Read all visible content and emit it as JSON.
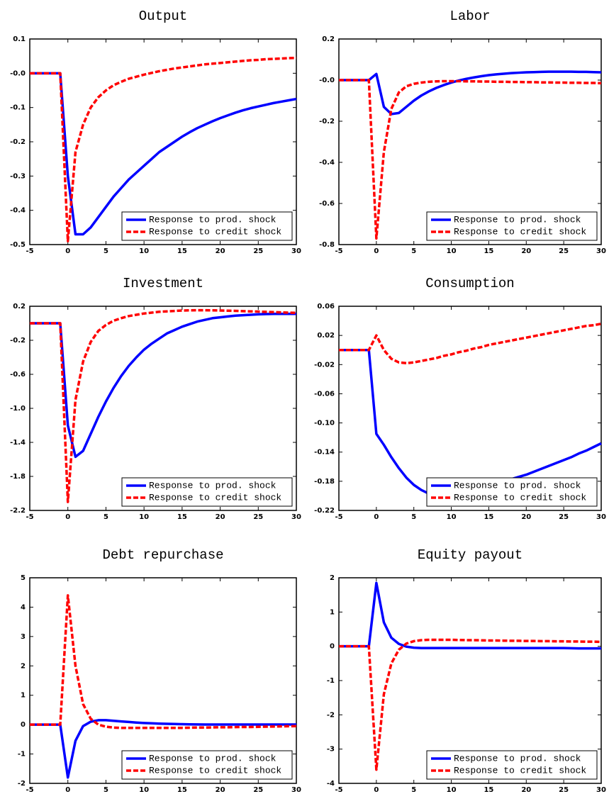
{
  "chart_data": [
    {
      "type": "line",
      "title": "Output",
      "x": [
        -5,
        -4,
        -3,
        -2,
        -1,
        0,
        1,
        2,
        3,
        4,
        5,
        6,
        7,
        8,
        9,
        10,
        11,
        12,
        13,
        14,
        15,
        16,
        17,
        18,
        19,
        20,
        21,
        22,
        23,
        24,
        25,
        26,
        27,
        28,
        29,
        30
      ],
      "series": [
        {
          "name": "Response to prod. shock",
          "color": "#0000ff",
          "linestyle": "solid",
          "values": [
            0,
            0,
            0,
            0,
            0,
            -0.3,
            -0.47,
            -0.47,
            -0.45,
            -0.42,
            -0.39,
            -0.36,
            -0.335,
            -0.31,
            -0.29,
            -0.27,
            -0.25,
            -0.23,
            -0.215,
            -0.2,
            -0.185,
            -0.172,
            -0.16,
            -0.15,
            -0.14,
            -0.131,
            -0.123,
            -0.115,
            -0.108,
            -0.102,
            -0.097,
            -0.092,
            -0.087,
            -0.083,
            -0.079,
            -0.075
          ]
        },
        {
          "name": "Response to credit shock",
          "color": "#ff0000",
          "linestyle": "dashed",
          "values": [
            0,
            0,
            0,
            0,
            0,
            -0.49,
            -0.23,
            -0.15,
            -0.1,
            -0.07,
            -0.05,
            -0.035,
            -0.025,
            -0.016,
            -0.01,
            -0.004,
            0.001,
            0.006,
            0.01,
            0.014,
            0.017,
            0.02,
            0.023,
            0.026,
            0.028,
            0.03,
            0.032,
            0.034,
            0.036,
            0.038,
            0.039,
            0.041,
            0.042,
            0.043,
            0.044,
            0.045
          ]
        }
      ],
      "xlim": [
        -5,
        30
      ],
      "xticks": [
        -5,
        0,
        5,
        10,
        15,
        20,
        25,
        30
      ],
      "ylim": [
        -0.5,
        0.1
      ],
      "yticks": [
        0.1,
        {
          "value": 0,
          "label": "-0.0"
        },
        -0.1,
        -0.2,
        -0.3,
        -0.4,
        -0.5
      ],
      "legend": "lower right"
    },
    {
      "type": "line",
      "title": "Labor",
      "x": [
        -5,
        -4,
        -3,
        -2,
        -1,
        0,
        1,
        2,
        3,
        4,
        5,
        6,
        7,
        8,
        9,
        10,
        11,
        12,
        13,
        14,
        15,
        16,
        17,
        18,
        19,
        20,
        21,
        22,
        23,
        24,
        25,
        26,
        27,
        28,
        29,
        30
      ],
      "series": [
        {
          "name": "Response to prod. shock",
          "color": "#0000ff",
          "linestyle": "solid",
          "values": [
            0,
            0,
            0,
            0,
            0,
            0.03,
            -0.13,
            -0.165,
            -0.16,
            -0.13,
            -0.1,
            -0.075,
            -0.055,
            -0.038,
            -0.024,
            -0.012,
            -0.002,
            0.006,
            0.013,
            0.019,
            0.024,
            0.028,
            0.031,
            0.034,
            0.036,
            0.038,
            0.039,
            0.04,
            0.041,
            0.041,
            0.041,
            0.041,
            0.04,
            0.04,
            0.039,
            0.038
          ]
        },
        {
          "name": "Response to credit shock",
          "color": "#ff0000",
          "linestyle": "dashed",
          "values": [
            0,
            0,
            0,
            0,
            0,
            -0.77,
            -0.35,
            -0.14,
            -0.06,
            -0.03,
            -0.018,
            -0.012,
            -0.008,
            -0.006,
            -0.005,
            -0.005,
            -0.005,
            -0.006,
            -0.006,
            -0.007,
            -0.007,
            -0.008,
            -0.008,
            -0.009,
            -0.009,
            -0.01,
            -0.01,
            -0.011,
            -0.011,
            -0.012,
            -0.012,
            -0.013,
            -0.013,
            -0.014,
            -0.014,
            -0.015
          ]
        }
      ],
      "xlim": [
        -5,
        30
      ],
      "xticks": [
        -5,
        0,
        5,
        10,
        15,
        20,
        25,
        30
      ],
      "ylim": [
        -0.8,
        0.2
      ],
      "yticks": [
        0.2,
        {
          "value": 0,
          "label": "-0.0"
        },
        -0.2,
        -0.4,
        -0.6,
        -0.8
      ],
      "legend": "lower right"
    },
    {
      "type": "line",
      "title": "Investment",
      "x": [
        -5,
        -4,
        -3,
        -2,
        -1,
        0,
        1,
        2,
        3,
        4,
        5,
        6,
        7,
        8,
        9,
        10,
        11,
        12,
        13,
        14,
        15,
        16,
        17,
        18,
        19,
        20,
        21,
        22,
        23,
        24,
        25,
        26,
        27,
        28,
        29,
        30
      ],
      "series": [
        {
          "name": "Response to prod. shock",
          "color": "#0000ff",
          "linestyle": "solid",
          "values": [
            0,
            0,
            0,
            0,
            0,
            -1.2,
            -1.57,
            -1.5,
            -1.3,
            -1.1,
            -0.92,
            -0.76,
            -0.62,
            -0.5,
            -0.4,
            -0.31,
            -0.24,
            -0.18,
            -0.12,
            -0.08,
            -0.04,
            -0.01,
            0.02,
            0.04,
            0.06,
            0.07,
            0.08,
            0.09,
            0.095,
            0.1,
            0.105,
            0.108,
            0.11,
            0.11,
            0.11,
            0.11
          ]
        },
        {
          "name": "Response to credit shock",
          "color": "#ff0000",
          "linestyle": "dashed",
          "values": [
            0,
            0,
            0,
            0,
            0,
            -2.1,
            -0.9,
            -0.45,
            -0.22,
            -0.09,
            -0.02,
            0.03,
            0.06,
            0.085,
            0.1,
            0.115,
            0.125,
            0.135,
            0.14,
            0.145,
            0.15,
            0.152,
            0.153,
            0.153,
            0.152,
            0.15,
            0.148,
            0.146,
            0.143,
            0.14,
            0.137,
            0.134,
            0.131,
            0.128,
            0.125,
            0.122
          ]
        }
      ],
      "xlim": [
        -5,
        30
      ],
      "xticks": [
        -5,
        0,
        5,
        10,
        15,
        20,
        25,
        30
      ],
      "ylim": [
        -2.2,
        0.2
      ],
      "yticks": [
        0.2,
        -0.2,
        -0.6,
        {
          "value": -1,
          "label": "-1.0"
        },
        -1.4,
        -1.8,
        -2.2
      ],
      "legend": "lower right"
    },
    {
      "type": "line",
      "title": "Consumption",
      "x": [
        -5,
        -4,
        -3,
        -2,
        -1,
        0,
        1,
        2,
        3,
        4,
        5,
        6,
        7,
        8,
        9,
        10,
        11,
        12,
        13,
        14,
        15,
        16,
        17,
        18,
        19,
        20,
        21,
        22,
        23,
        24,
        25,
        26,
        27,
        28,
        29,
        30
      ],
      "series": [
        {
          "name": "Response to prod. shock",
          "color": "#0000ff",
          "linestyle": "solid",
          "values": [
            0,
            0,
            0,
            0,
            0,
            -0.115,
            -0.13,
            -0.147,
            -0.162,
            -0.175,
            -0.185,
            -0.192,
            -0.197,
            -0.2,
            -0.201,
            -0.2,
            -0.198,
            -0.195,
            -0.192,
            -0.189,
            -0.186,
            -0.183,
            -0.18,
            -0.177,
            -0.174,
            -0.171,
            -0.167,
            -0.163,
            -0.159,
            -0.155,
            -0.151,
            -0.147,
            -0.142,
            -0.138,
            -0.133,
            -0.128
          ]
        },
        {
          "name": "Response to credit shock",
          "color": "#ff0000",
          "linestyle": "dashed",
          "values": [
            0,
            0,
            0,
            0,
            0,
            0.02,
            0,
            -0.012,
            -0.017,
            -0.018,
            -0.017,
            -0.015,
            -0.013,
            -0.011,
            -0.008,
            -0.006,
            -0.003,
            -0.001,
            0.002,
            0.004,
            0.007,
            0.009,
            0.011,
            0.013,
            0.015,
            0.017,
            0.019,
            0.021,
            0.023,
            0.025,
            0.027,
            0.029,
            0.031,
            0.033,
            0.034,
            0.036
          ]
        }
      ],
      "xlim": [
        -5,
        30
      ],
      "xticks": [
        -5,
        0,
        5,
        10,
        15,
        20,
        25,
        30
      ],
      "ylim": [
        -0.22,
        0.06
      ],
      "yticks": [
        0.06,
        0.02,
        -0.02,
        -0.06,
        {
          "value": -0.1,
          "label": "-0.10"
        },
        -0.14,
        -0.18,
        -0.22
      ],
      "legend": "lower right"
    },
    {
      "type": "line",
      "title": "Debt repurchase",
      "x": [
        -5,
        -4,
        -3,
        -2,
        -1,
        0,
        1,
        2,
        3,
        4,
        5,
        6,
        7,
        8,
        9,
        10,
        11,
        12,
        13,
        14,
        15,
        16,
        17,
        18,
        19,
        20,
        21,
        22,
        23,
        24,
        25,
        26,
        27,
        28,
        29,
        30
      ],
      "series": [
        {
          "name": "Response to prod. shock",
          "color": "#0000ff",
          "linestyle": "solid",
          "values": [
            0,
            0,
            0,
            0,
            0,
            -1.8,
            -0.55,
            -0.05,
            0.1,
            0.15,
            0.15,
            0.13,
            0.11,
            0.09,
            0.07,
            0.055,
            0.045,
            0.035,
            0.027,
            0.02,
            0.014,
            0.01,
            0.007,
            0.005,
            0.005,
            0.005,
            0.005,
            0.005,
            0.005,
            0.005,
            0.005,
            0.005,
            0.005,
            0.005,
            0.005,
            0.005
          ]
        },
        {
          "name": "Response to credit shock",
          "color": "#ff0000",
          "linestyle": "dashed",
          "values": [
            0,
            0,
            0,
            0,
            0,
            4.4,
            2.0,
            0.7,
            0.2,
            0,
            -0.07,
            -0.1,
            -0.11,
            -0.11,
            -0.11,
            -0.11,
            -0.11,
            -0.11,
            -0.11,
            -0.11,
            -0.11,
            -0.105,
            -0.1,
            -0.1,
            -0.095,
            -0.09,
            -0.09,
            -0.085,
            -0.08,
            -0.08,
            -0.075,
            -0.07,
            -0.065,
            -0.06,
            -0.055,
            -0.05
          ]
        }
      ],
      "xlim": [
        -5,
        30
      ],
      "xticks": [
        -5,
        0,
        5,
        10,
        15,
        20,
        25,
        30
      ],
      "ylim": [
        -2,
        5
      ],
      "yticks": [
        5,
        4,
        3,
        2,
        1,
        0,
        -1,
        -2
      ],
      "legend": "lower right"
    },
    {
      "type": "line",
      "title": "Equity payout",
      "x": [
        -5,
        -4,
        -3,
        -2,
        -1,
        0,
        1,
        2,
        3,
        4,
        5,
        6,
        7,
        8,
        9,
        10,
        11,
        12,
        13,
        14,
        15,
        16,
        17,
        18,
        19,
        20,
        21,
        22,
        23,
        24,
        25,
        26,
        27,
        28,
        29,
        30
      ],
      "series": [
        {
          "name": "Response to prod. shock",
          "color": "#0000ff",
          "linestyle": "solid",
          "values": [
            0,
            0,
            0,
            0,
            0,
            1.85,
            0.7,
            0.25,
            0.07,
            -0.01,
            -0.04,
            -0.05,
            -0.05,
            -0.05,
            -0.05,
            -0.05,
            -0.05,
            -0.05,
            -0.05,
            -0.05,
            -0.05,
            -0.05,
            -0.05,
            -0.05,
            -0.05,
            -0.05,
            -0.05,
            -0.05,
            -0.05,
            -0.05,
            -0.05,
            -0.055,
            -0.06,
            -0.06,
            -0.06,
            -0.06
          ]
        },
        {
          "name": "Response to credit shock",
          "color": "#ff0000",
          "linestyle": "dashed",
          "values": [
            0,
            0,
            0,
            0,
            0,
            -3.6,
            -1.4,
            -0.5,
            -0.1,
            0.08,
            0.15,
            0.18,
            0.19,
            0.19,
            0.19,
            0.19,
            0.185,
            0.18,
            0.18,
            0.175,
            0.17,
            0.17,
            0.165,
            0.16,
            0.16,
            0.155,
            0.155,
            0.15,
            0.15,
            0.145,
            0.145,
            0.14,
            0.14,
            0.135,
            0.135,
            0.13
          ]
        }
      ],
      "xlim": [
        -5,
        30
      ],
      "xticks": [
        -5,
        0,
        5,
        10,
        15,
        20,
        25,
        30
      ],
      "ylim": [
        -4,
        2
      ],
      "yticks": [
        2,
        1,
        0,
        -1,
        -2,
        -3,
        -4
      ],
      "legend": "lower right"
    }
  ]
}
